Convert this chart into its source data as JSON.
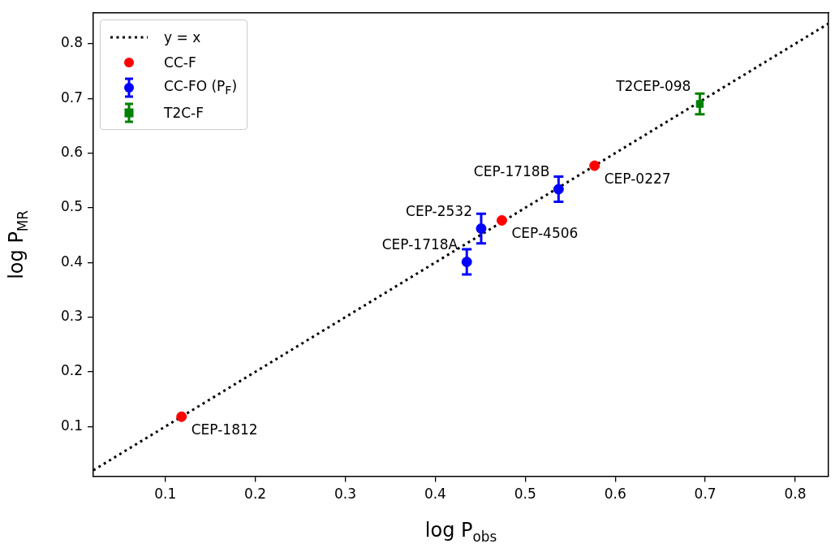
{
  "chart_data": {
    "type": "scatter",
    "xlabel": "log P$_{obs}$",
    "ylabel": "log P$_{MR}$",
    "xlim": [
      0.02,
      0.837
    ],
    "ylim": [
      0.009,
      0.856
    ],
    "xticks": [
      0.1,
      0.2,
      0.3,
      0.4,
      0.5,
      0.6,
      0.7,
      0.8
    ],
    "yticks": [
      0.1,
      0.2,
      0.3,
      0.4,
      0.5,
      0.6,
      0.7,
      0.8
    ],
    "grid": false,
    "legend": "top left",
    "series": [
      {
        "name": "y = x",
        "type": "line",
        "color": "#000000",
        "line_style": "dotted",
        "marker": "none",
        "x": [
          0.02,
          0.837
        ],
        "values": [
          0.02,
          0.837
        ]
      },
      {
        "name": "CC-F",
        "type": "scatter",
        "color": "#ff0000",
        "marker": "circle",
        "x": [
          0.118,
          0.474,
          0.577
        ],
        "values": [
          0.118,
          0.477,
          0.577
        ]
      },
      {
        "name": "CC-FO (P$_{F}$)",
        "type": "scatter",
        "color": "#0000ff",
        "marker": "circle",
        "x": [
          0.435,
          0.451,
          0.537
        ],
        "values": [
          0.401,
          0.462,
          0.534
        ],
        "errors": [
          0.023,
          0.027,
          0.023
        ]
      },
      {
        "name": "T2C-F",
        "type": "scatter",
        "color": "#008000",
        "marker": "square",
        "x": [
          0.694
        ],
        "values": [
          0.69
        ],
        "errors": [
          0.019
        ]
      }
    ],
    "annotations": [
      {
        "text": "T2CEP-098",
        "x": 0.694,
        "y": 0.69
      },
      {
        "text": "CEP-0227",
        "x": 0.577,
        "y": 0.577
      },
      {
        "text": "CEP-1718B",
        "x": 0.537,
        "y": 0.534
      },
      {
        "text": "CEP-4506",
        "x": 0.474,
        "y": 0.477
      },
      {
        "text": "CEP-2532",
        "x": 0.451,
        "y": 0.462
      },
      {
        "text": "CEP-1812",
        "x": 0.118,
        "y": 0.118
      },
      {
        "text": "CEP-1718A",
        "x": 0.435,
        "y": 0.401
      }
    ]
  }
}
